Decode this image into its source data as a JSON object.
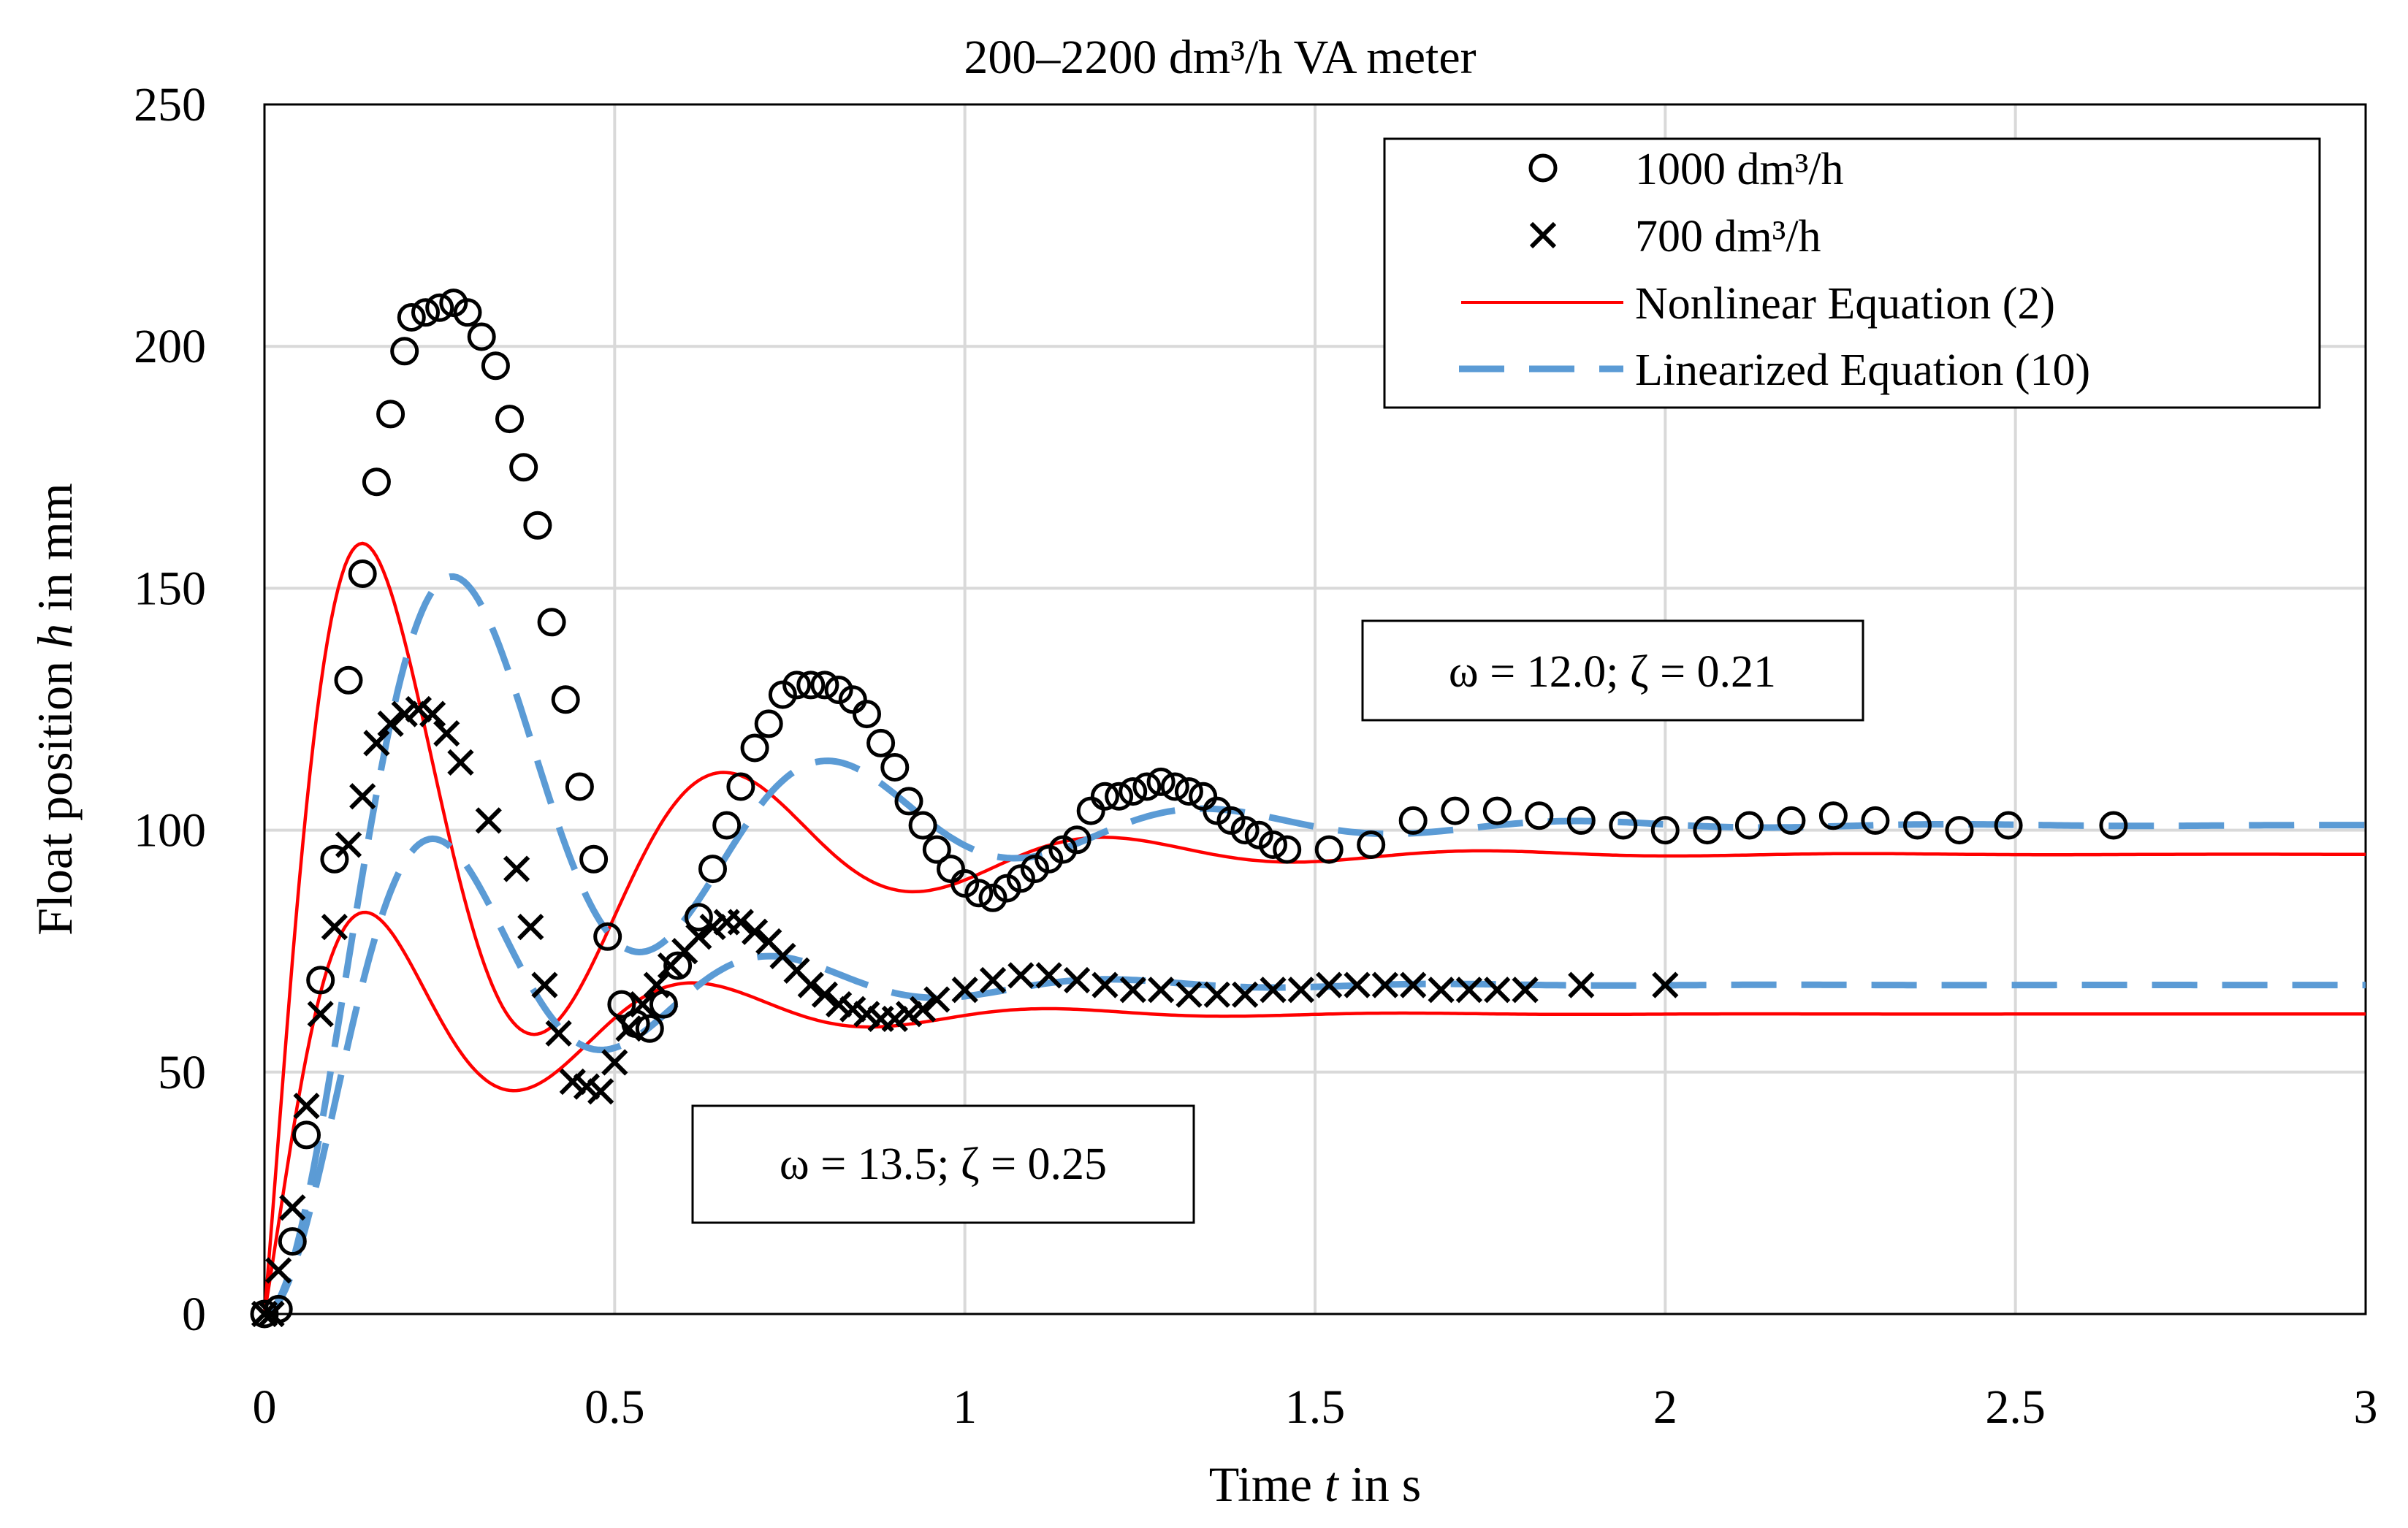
{
  "chart_data": {
    "type": "line",
    "title": "200–2200 dm³/h VA meter",
    "xlabel": {
      "prefix": "Time ",
      "var": "t",
      "suffix": " in s"
    },
    "ylabel": {
      "prefix": "Float position ",
      "var": "h",
      "suffix": " in mm"
    },
    "xlim": [
      0,
      3
    ],
    "ylim": [
      0,
      250
    ],
    "xticks": [
      0,
      0.5,
      1,
      1.5,
      2,
      2.5,
      3
    ],
    "xtick_labels": [
      "0",
      "0.5",
      "1",
      "1.5",
      "2",
      "2.5",
      "3"
    ],
    "yticks": [
      0,
      50,
      100,
      150,
      200,
      250
    ],
    "ytick_labels": [
      "0",
      "50",
      "100",
      "150",
      "200",
      "250"
    ],
    "grid": true,
    "legend_position": "top-right",
    "legend": [
      {
        "label": "1000 dm³/h",
        "marker": "circle"
      },
      {
        "label": "700 dm³/h",
        "marker": "x"
      },
      {
        "label": "Nonlinear Equation (2)",
        "line": "solid",
        "color": "#ff0000"
      },
      {
        "label": "Linearized Equation (10)",
        "line": "dashed",
        "color": "#5b9bd5"
      }
    ],
    "annotations": [
      {
        "text": "ω = 12.0; ζ = 0.21",
        "refers_to": "1000 dm³/h"
      },
      {
        "text": "ω = 13.5; ζ = 0.25",
        "refers_to": "700 dm³/h"
      }
    ],
    "model_curves": [
      {
        "name": "Nonlinear Equation (2), 1000 dm³/h",
        "style": "nonlinear",
        "color": "#ff0000",
        "kind": "nonlinear",
        "h0": 0,
        "t0": 0.0,
        "rise": 0.055,
        "h_final": 95,
        "overshoot": 117,
        "omega_d": 11.6,
        "zeta": 0.25
      },
      {
        "name": "Linearized Equation (10), 1000 dm³/h",
        "style": "linearized",
        "color": "#5b9bd5",
        "kind": "linear",
        "h0": 0,
        "h_final": 101,
        "omega": 12.0,
        "zeta": 0.21
      },
      {
        "name": "Nonlinear Equation (2), 700 dm³/h",
        "style": "nonlinear",
        "color": "#ff0000",
        "kind": "nonlinear",
        "h0": 0,
        "t0": 0.0,
        "rise": 0.07,
        "h_final": 62,
        "overshoot": 56,
        "omega_d": 12.4,
        "zeta": 0.28
      },
      {
        "name": "Linearized Equation (10), 700 dm³/h",
        "style": "linearized",
        "color": "#5b9bd5",
        "kind": "linear",
        "h0": 0,
        "h_final": 68,
        "omega": 13.5,
        "zeta": 0.25
      }
    ],
    "series": [
      {
        "name": "1000 dm³/h",
        "marker": "circle",
        "points": [
          [
            0.0,
            0
          ],
          [
            0.02,
            1
          ],
          [
            0.04,
            15
          ],
          [
            0.06,
            37
          ],
          [
            0.08,
            69
          ],
          [
            0.1,
            94
          ],
          [
            0.12,
            131
          ],
          [
            0.14,
            153
          ],
          [
            0.16,
            172
          ],
          [
            0.18,
            186
          ],
          [
            0.2,
            199
          ],
          [
            0.21,
            206
          ],
          [
            0.23,
            207
          ],
          [
            0.25,
            208
          ],
          [
            0.27,
            209
          ],
          [
            0.29,
            207
          ],
          [
            0.31,
            202
          ],
          [
            0.33,
            196
          ],
          [
            0.35,
            185
          ],
          [
            0.37,
            175
          ],
          [
            0.39,
            163
          ],
          [
            0.41,
            143
          ],
          [
            0.43,
            127
          ],
          [
            0.45,
            109
          ],
          [
            0.47,
            94
          ],
          [
            0.49,
            78
          ],
          [
            0.51,
            64
          ],
          [
            0.53,
            60
          ],
          [
            0.55,
            59
          ],
          [
            0.57,
            64
          ],
          [
            0.59,
            72
          ],
          [
            0.62,
            82
          ],
          [
            0.64,
            92
          ],
          [
            0.66,
            101
          ],
          [
            0.68,
            109
          ],
          [
            0.7,
            117
          ],
          [
            0.72,
            122
          ],
          [
            0.74,
            128
          ],
          [
            0.76,
            130
          ],
          [
            0.78,
            130
          ],
          [
            0.8,
            130
          ],
          [
            0.82,
            129
          ],
          [
            0.84,
            127
          ],
          [
            0.86,
            124
          ],
          [
            0.88,
            118
          ],
          [
            0.9,
            113
          ],
          [
            0.92,
            106
          ],
          [
            0.94,
            101
          ],
          [
            0.96,
            96
          ],
          [
            0.98,
            92
          ],
          [
            1.0,
            89
          ],
          [
            1.02,
            87
          ],
          [
            1.04,
            86
          ],
          [
            1.06,
            88
          ],
          [
            1.08,
            90
          ],
          [
            1.1,
            92
          ],
          [
            1.12,
            94
          ],
          [
            1.14,
            96
          ],
          [
            1.16,
            98
          ],
          [
            1.18,
            104
          ],
          [
            1.2,
            107
          ],
          [
            1.22,
            107
          ],
          [
            1.24,
            108
          ],
          [
            1.26,
            109
          ],
          [
            1.28,
            110
          ],
          [
            1.3,
            109
          ],
          [
            1.32,
            108
          ],
          [
            1.34,
            107
          ],
          [
            1.36,
            104
          ],
          [
            1.38,
            102
          ],
          [
            1.4,
            100
          ],
          [
            1.42,
            99
          ],
          [
            1.44,
            97
          ],
          [
            1.46,
            96
          ],
          [
            1.52,
            96
          ],
          [
            1.58,
            97
          ],
          [
            1.64,
            102
          ],
          [
            1.7,
            104
          ],
          [
            1.76,
            104
          ],
          [
            1.82,
            103
          ],
          [
            1.88,
            102
          ],
          [
            1.94,
            101
          ],
          [
            2.0,
            100
          ],
          [
            2.06,
            100
          ],
          [
            2.12,
            101
          ],
          [
            2.18,
            102
          ],
          [
            2.24,
            103
          ],
          [
            2.3,
            102
          ],
          [
            2.36,
            101
          ],
          [
            2.42,
            100
          ],
          [
            2.49,
            101
          ],
          [
            2.64,
            101
          ]
        ]
      },
      {
        "name": "700 dm³/h",
        "marker": "x",
        "points": [
          [
            0.0,
            0
          ],
          [
            0.01,
            0
          ],
          [
            0.02,
            9
          ],
          [
            0.04,
            22
          ],
          [
            0.06,
            43
          ],
          [
            0.08,
            62
          ],
          [
            0.1,
            80
          ],
          [
            0.12,
            97
          ],
          [
            0.14,
            107
          ],
          [
            0.16,
            118
          ],
          [
            0.18,
            122
          ],
          [
            0.2,
            124
          ],
          [
            0.22,
            125
          ],
          [
            0.24,
            124
          ],
          [
            0.26,
            120
          ],
          [
            0.28,
            114
          ],
          [
            0.32,
            102
          ],
          [
            0.36,
            92
          ],
          [
            0.38,
            80
          ],
          [
            0.4,
            68
          ],
          [
            0.42,
            58
          ],
          [
            0.44,
            48
          ],
          [
            0.46,
            47
          ],
          [
            0.48,
            46
          ],
          [
            0.5,
            52
          ],
          [
            0.52,
            59
          ],
          [
            0.54,
            64
          ],
          [
            0.56,
            68
          ],
          [
            0.58,
            72
          ],
          [
            0.6,
            75
          ],
          [
            0.62,
            78
          ],
          [
            0.64,
            80
          ],
          [
            0.66,
            81
          ],
          [
            0.68,
            81
          ],
          [
            0.7,
            79
          ],
          [
            0.72,
            77
          ],
          [
            0.74,
            74
          ],
          [
            0.76,
            71
          ],
          [
            0.78,
            68
          ],
          [
            0.8,
            66
          ],
          [
            0.82,
            64
          ],
          [
            0.84,
            63
          ],
          [
            0.86,
            62
          ],
          [
            0.88,
            61
          ],
          [
            0.9,
            61
          ],
          [
            0.92,
            62
          ],
          [
            0.94,
            63
          ],
          [
            0.96,
            65
          ],
          [
            1.0,
            67
          ],
          [
            1.04,
            69
          ],
          [
            1.08,
            70
          ],
          [
            1.12,
            70
          ],
          [
            1.16,
            69
          ],
          [
            1.2,
            68
          ],
          [
            1.24,
            67
          ],
          [
            1.28,
            67
          ],
          [
            1.32,
            66
          ],
          [
            1.36,
            66
          ],
          [
            1.4,
            66
          ],
          [
            1.44,
            67
          ],
          [
            1.48,
            67
          ],
          [
            1.52,
            68
          ],
          [
            1.56,
            68
          ],
          [
            1.6,
            68
          ],
          [
            1.64,
            68
          ],
          [
            1.68,
            67
          ],
          [
            1.72,
            67
          ],
          [
            1.76,
            67
          ],
          [
            1.8,
            67
          ],
          [
            1.88,
            68
          ],
          [
            2.0,
            68
          ]
        ]
      }
    ]
  }
}
